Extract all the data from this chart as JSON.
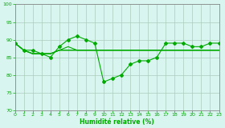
{
  "x": [
    0,
    1,
    2,
    3,
    4,
    5,
    6,
    7,
    8,
    9,
    10,
    11,
    12,
    13,
    14,
    15,
    16,
    17,
    18,
    19,
    20,
    21,
    22,
    23
  ],
  "main_series": [
    89,
    87,
    87,
    86,
    85,
    88,
    90,
    91,
    90,
    89,
    78,
    79,
    80,
    83,
    84,
    84,
    85,
    89,
    89,
    89,
    88,
    88,
    89,
    89
  ],
  "series2": [
    89,
    87,
    86,
    86,
    86,
    87,
    88,
    87,
    87,
    87,
    87,
    87,
    87,
    87,
    87,
    87,
    87,
    87,
    87,
    87,
    87,
    87,
    87,
    87
  ],
  "series3": [
    89,
    87,
    86,
    86,
    86,
    87,
    87,
    87,
    87,
    87,
    87,
    87,
    87,
    87,
    87,
    87,
    87,
    87,
    87,
    87,
    87,
    87,
    87,
    87
  ],
  "series4": [
    89,
    87,
    86,
    86,
    86,
    87,
    87,
    87,
    87,
    87,
    87,
    87,
    87,
    87,
    87,
    87,
    87,
    87,
    87,
    87,
    87,
    87,
    87,
    87
  ],
  "xlabel": "Humidité relative (%)",
  "ylim": [
    70,
    100
  ],
  "yticks": [
    70,
    75,
    80,
    85,
    90,
    95,
    100
  ],
  "xticks": [
    0,
    1,
    2,
    3,
    4,
    5,
    6,
    7,
    8,
    9,
    10,
    11,
    12,
    13,
    14,
    15,
    16,
    17,
    18,
    19,
    20,
    21,
    22,
    23
  ],
  "line_color": "#00aa00",
  "marker": "D",
  "bg_color": "#d8f5f0",
  "grid_color": "#aaccbb",
  "axis_color": "#888888",
  "text_color": "#00aa00",
  "marker_size": 2.0,
  "linewidth": 0.8
}
